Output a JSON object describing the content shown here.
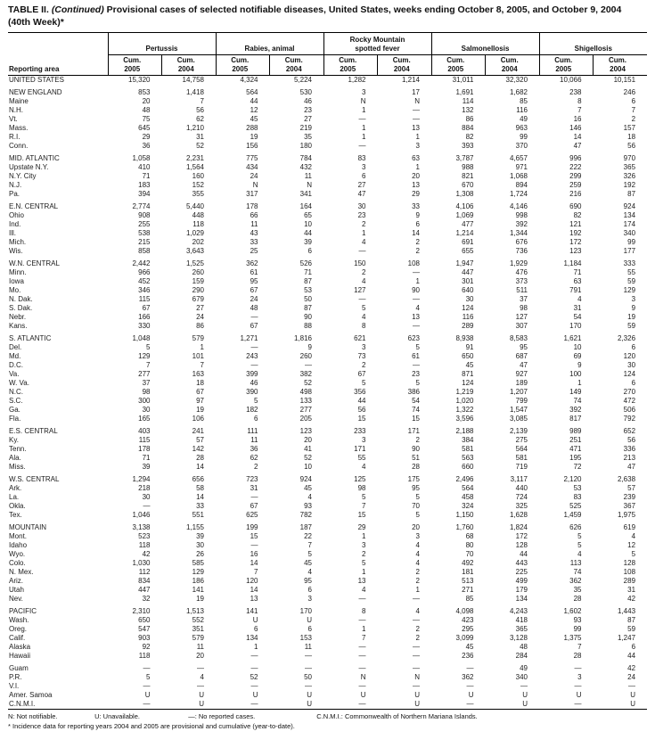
{
  "title": {
    "label": "TABLE II. ",
    "continued": "(Continued)",
    "text": " Provisional cases of selected notifiable diseases, United States, weeks ending October 8, 2005, and October 9, 2004",
    "line2": "(40th Week)*"
  },
  "table": {
    "reporting_area_label": "Reporting area",
    "groups": [
      "Pertussis",
      "Rabies, animal",
      "Rocky Mountain\nspotted fever",
      "Salmonellosis",
      "Shigellosis"
    ],
    "subheaders": [
      [
        "Cum.",
        "2005"
      ],
      [
        "Cum.",
        "2004"
      ]
    ],
    "sections": [
      {
        "name": "united-states",
        "rows": [
          [
            "UNITED STATES",
            "15,320",
            "14,758",
            "4,324",
            "5,224",
            "1,282",
            "1,214",
            "31,011",
            "32,320",
            "10,066",
            "10,151"
          ]
        ]
      },
      {
        "name": "new-england",
        "rows": [
          [
            "NEW ENGLAND",
            "853",
            "1,418",
            "564",
            "530",
            "3",
            "17",
            "1,691",
            "1,682",
            "238",
            "246"
          ],
          [
            "Maine",
            "20",
            "7",
            "44",
            "46",
            "N",
            "N",
            "114",
            "85",
            "8",
            "6"
          ],
          [
            "N.H.",
            "48",
            "56",
            "12",
            "23",
            "1",
            "—",
            "132",
            "116",
            "7",
            "7"
          ],
          [
            "Vt.",
            "75",
            "62",
            "45",
            "27",
            "—",
            "—",
            "86",
            "49",
            "16",
            "2"
          ],
          [
            "Mass.",
            "645",
            "1,210",
            "288",
            "219",
            "1",
            "13",
            "884",
            "963",
            "146",
            "157"
          ],
          [
            "R.I.",
            "29",
            "31",
            "19",
            "35",
            "1",
            "1",
            "82",
            "99",
            "14",
            "18"
          ],
          [
            "Conn.",
            "36",
            "52",
            "156",
            "180",
            "—",
            "3",
            "393",
            "370",
            "47",
            "56"
          ]
        ]
      },
      {
        "name": "mid-atlantic",
        "rows": [
          [
            "MID. ATLANTIC",
            "1,058",
            "2,231",
            "775",
            "784",
            "83",
            "63",
            "3,787",
            "4,657",
            "996",
            "970"
          ],
          [
            "Upstate N.Y.",
            "410",
            "1,564",
            "434",
            "432",
            "3",
            "1",
            "988",
            "971",
            "222",
            "365"
          ],
          [
            "N.Y. City",
            "71",
            "160",
            "24",
            "11",
            "6",
            "20",
            "821",
            "1,068",
            "299",
            "326"
          ],
          [
            "N.J.",
            "183",
            "152",
            "N",
            "N",
            "27",
            "13",
            "670",
            "894",
            "259",
            "192"
          ],
          [
            "Pa.",
            "394",
            "355",
            "317",
            "341",
            "47",
            "29",
            "1,308",
            "1,724",
            "216",
            "87"
          ]
        ]
      },
      {
        "name": "en-central",
        "rows": [
          [
            "E.N. CENTRAL",
            "2,774",
            "5,440",
            "178",
            "164",
            "30",
            "33",
            "4,106",
            "4,146",
            "690",
            "924"
          ],
          [
            "Ohio",
            "908",
            "448",
            "66",
            "65",
            "23",
            "9",
            "1,069",
            "998",
            "82",
            "134"
          ],
          [
            "Ind.",
            "255",
            "118",
            "11",
            "10",
            "2",
            "6",
            "477",
            "392",
            "121",
            "174"
          ],
          [
            "Ill.",
            "538",
            "1,029",
            "43",
            "44",
            "1",
            "14",
            "1,214",
            "1,344",
            "192",
            "340"
          ],
          [
            "Mich.",
            "215",
            "202",
            "33",
            "39",
            "4",
            "2",
            "691",
            "676",
            "172",
            "99"
          ],
          [
            "Wis.",
            "858",
            "3,643",
            "25",
            "6",
            "—",
            "2",
            "655",
            "736",
            "123",
            "177"
          ]
        ]
      },
      {
        "name": "wn-central",
        "rows": [
          [
            "W.N. CENTRAL",
            "2,442",
            "1,525",
            "362",
            "526",
            "150",
            "108",
            "1,947",
            "1,929",
            "1,184",
            "333"
          ],
          [
            "Minn.",
            "966",
            "260",
            "61",
            "71",
            "2",
            "—",
            "447",
            "476",
            "71",
            "55"
          ],
          [
            "Iowa",
            "452",
            "159",
            "95",
            "87",
            "4",
            "1",
            "301",
            "373",
            "63",
            "59"
          ],
          [
            "Mo.",
            "346",
            "290",
            "67",
            "53",
            "127",
            "90",
            "640",
            "511",
            "791",
            "129"
          ],
          [
            "N. Dak.",
            "115",
            "679",
            "24",
            "50",
            "—",
            "—",
            "30",
            "37",
            "4",
            "3"
          ],
          [
            "S. Dak.",
            "67",
            "27",
            "48",
            "87",
            "5",
            "4",
            "124",
            "98",
            "31",
            "9"
          ],
          [
            "Nebr.",
            "166",
            "24",
            "—",
            "90",
            "4",
            "13",
            "116",
            "127",
            "54",
            "19"
          ],
          [
            "Kans.",
            "330",
            "86",
            "67",
            "88",
            "8",
            "—",
            "289",
            "307",
            "170",
            "59"
          ]
        ]
      },
      {
        "name": "s-atlantic",
        "rows": [
          [
            "S. ATLANTIC",
            "1,048",
            "579",
            "1,271",
            "1,816",
            "621",
            "623",
            "8,938",
            "8,583",
            "1,621",
            "2,326"
          ],
          [
            "Del.",
            "5",
            "1",
            "—",
            "9",
            "3",
            "5",
            "91",
            "95",
            "10",
            "6"
          ],
          [
            "Md.",
            "129",
            "101",
            "243",
            "260",
            "73",
            "61",
            "650",
            "687",
            "69",
            "120"
          ],
          [
            "D.C.",
            "7",
            "7",
            "—",
            "—",
            "2",
            "—",
            "45",
            "47",
            "9",
            "30"
          ],
          [
            "Va.",
            "277",
            "163",
            "399",
            "382",
            "67",
            "23",
            "871",
            "927",
            "100",
            "124"
          ],
          [
            "W. Va.",
            "37",
            "18",
            "46",
            "52",
            "5",
            "5",
            "124",
            "189",
            "1",
            "6"
          ],
          [
            "N.C.",
            "98",
            "67",
            "390",
            "498",
            "356",
            "386",
            "1,219",
            "1,207",
            "149",
            "270"
          ],
          [
            "S.C.",
            "300",
            "97",
            "5",
            "133",
            "44",
            "54",
            "1,020",
            "799",
            "74",
            "472"
          ],
          [
            "Ga.",
            "30",
            "19",
            "182",
            "277",
            "56",
            "74",
            "1,322",
            "1,547",
            "392",
            "506"
          ],
          [
            "Fla.",
            "165",
            "106",
            "6",
            "205",
            "15",
            "15",
            "3,596",
            "3,085",
            "817",
            "792"
          ]
        ]
      },
      {
        "name": "es-central",
        "rows": [
          [
            "E.S. CENTRAL",
            "403",
            "241",
            "111",
            "123",
            "233",
            "171",
            "2,188",
            "2,139",
            "989",
            "652"
          ],
          [
            "Ky.",
            "115",
            "57",
            "11",
            "20",
            "3",
            "2",
            "384",
            "275",
            "251",
            "56"
          ],
          [
            "Tenn.",
            "178",
            "142",
            "36",
            "41",
            "171",
            "90",
            "581",
            "564",
            "471",
            "336"
          ],
          [
            "Ala.",
            "71",
            "28",
            "62",
            "52",
            "55",
            "51",
            "563",
            "581",
            "195",
            "213"
          ],
          [
            "Miss.",
            "39",
            "14",
            "2",
            "10",
            "4",
            "28",
            "660",
            "719",
            "72",
            "47"
          ]
        ]
      },
      {
        "name": "ws-central",
        "rows": [
          [
            "W.S. CENTRAL",
            "1,294",
            "656",
            "723",
            "924",
            "125",
            "175",
            "2,496",
            "3,117",
            "2,120",
            "2,638"
          ],
          [
            "Ark.",
            "218",
            "58",
            "31",
            "45",
            "98",
            "95",
            "564",
            "440",
            "53",
            "57"
          ],
          [
            "La.",
            "30",
            "14",
            "—",
            "4",
            "5",
            "5",
            "458",
            "724",
            "83",
            "239"
          ],
          [
            "Okla.",
            "—",
            "33",
            "67",
            "93",
            "7",
            "70",
            "324",
            "325",
            "525",
            "367"
          ],
          [
            "Tex.",
            "1,046",
            "551",
            "625",
            "782",
            "15",
            "5",
            "1,150",
            "1,628",
            "1,459",
            "1,975"
          ]
        ]
      },
      {
        "name": "mountain",
        "rows": [
          [
            "MOUNTAIN",
            "3,138",
            "1,155",
            "199",
            "187",
            "29",
            "20",
            "1,760",
            "1,824",
            "626",
            "619"
          ],
          [
            "Mont.",
            "523",
            "39",
            "15",
            "22",
            "1",
            "3",
            "68",
            "172",
            "5",
            "4"
          ],
          [
            "Idaho",
            "118",
            "30",
            "—",
            "7",
            "3",
            "4",
            "80",
            "128",
            "5",
            "12"
          ],
          [
            "Wyo.",
            "42",
            "26",
            "16",
            "5",
            "2",
            "4",
            "70",
            "44",
            "4",
            "5"
          ],
          [
            "Colo.",
            "1,030",
            "585",
            "14",
            "45",
            "5",
            "4",
            "492",
            "443",
            "113",
            "128"
          ],
          [
            "N. Mex.",
            "112",
            "129",
            "7",
            "4",
            "1",
            "2",
            "181",
            "225",
            "74",
            "108"
          ],
          [
            "Ariz.",
            "834",
            "186",
            "120",
            "95",
            "13",
            "2",
            "513",
            "499",
            "362",
            "289"
          ],
          [
            "Utah",
            "447",
            "141",
            "14",
            "6",
            "4",
            "1",
            "271",
            "179",
            "35",
            "31"
          ],
          [
            "Nev.",
            "32",
            "19",
            "13",
            "3",
            "—",
            "—",
            "85",
            "134",
            "28",
            "42"
          ]
        ]
      },
      {
        "name": "pacific",
        "rows": [
          [
            "PACIFIC",
            "2,310",
            "1,513",
            "141",
            "170",
            "8",
            "4",
            "4,098",
            "4,243",
            "1,602",
            "1,443"
          ],
          [
            "Wash.",
            "650",
            "552",
            "U",
            "U",
            "—",
            "—",
            "423",
            "418",
            "93",
            "87"
          ],
          [
            "Oreg.",
            "547",
            "351",
            "6",
            "6",
            "1",
            "2",
            "295",
            "365",
            "99",
            "59"
          ],
          [
            "Calif.",
            "903",
            "579",
            "134",
            "153",
            "7",
            "2",
            "3,099",
            "3,128",
            "1,375",
            "1,247"
          ],
          [
            "Alaska",
            "92",
            "11",
            "1",
            "11",
            "—",
            "—",
            "45",
            "48",
            "7",
            "6"
          ],
          [
            "Hawaii",
            "118",
            "20",
            "—",
            "—",
            "—",
            "—",
            "236",
            "284",
            "28",
            "44"
          ]
        ]
      },
      {
        "name": "territories",
        "rows": [
          [
            "Guam",
            "—",
            "—",
            "—",
            "—",
            "—",
            "—",
            "—",
            "49",
            "—",
            "42"
          ],
          [
            "P.R.",
            "5",
            "4",
            "52",
            "50",
            "N",
            "N",
            "362",
            "340",
            "3",
            "24"
          ],
          [
            "V.I.",
            "—",
            "—",
            "—",
            "—",
            "—",
            "—",
            "—",
            "—",
            "—",
            "—"
          ],
          [
            "Amer. Samoa",
            "U",
            "U",
            "U",
            "U",
            "U",
            "U",
            "U",
            "U",
            "U",
            "U"
          ],
          [
            "C.N.M.I.",
            "—",
            "U",
            "—",
            "U",
            "—",
            "U",
            "—",
            "U",
            "—",
            "U"
          ]
        ]
      }
    ]
  },
  "footnotes": {
    "legend": [
      "N: Not notifiable.",
      "U: Unavailable.",
      "—: No reported cases.",
      "C.N.M.I.: Commonwealth of Northern Mariana Islands."
    ],
    "note": "* Incidence data for reporting years 2004 and 2005 are provisional and cumulative (year-to-date)."
  }
}
